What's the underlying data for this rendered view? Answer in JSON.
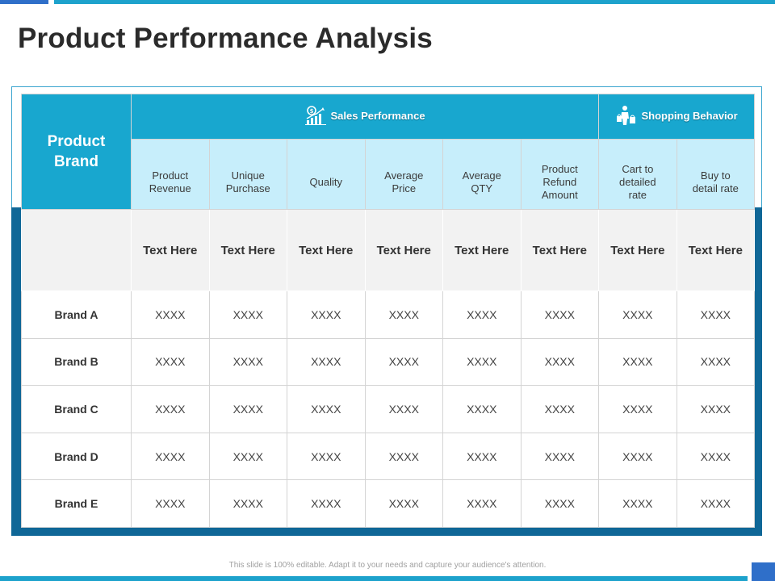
{
  "slide": {
    "title": "Product Performance Analysis",
    "footnote": "This slide is 100% editable. Adapt it to your needs and capture your audience's attention."
  },
  "table": {
    "brand_header_line1": "Product",
    "brand_header_line2": "Brand",
    "groups": [
      {
        "label": "Sales Performance",
        "icon": "money-growth-chart-icon"
      },
      {
        "label": "Shopping Behavior",
        "icon": "shopper-bags-icon"
      }
    ],
    "columns": [
      {
        "line1": "Product",
        "line2": "Revenue",
        "line3": ""
      },
      {
        "line1": "Unique",
        "line2": "Purchase",
        "line3": ""
      },
      {
        "line1": "Quality",
        "line2": "",
        "line3": ""
      },
      {
        "line1": "Average",
        "line2": "Price",
        "line3": ""
      },
      {
        "line1": "Average",
        "line2": "QTY",
        "line3": ""
      },
      {
        "line1": "Product",
        "line2": "Refund",
        "line3": "Amount"
      },
      {
        "line1": "Cart to",
        "line2": "detailed",
        "line3": "rate"
      },
      {
        "line1": "Buy to",
        "line2": "detail rate",
        "line3": ""
      }
    ],
    "text_row": [
      "Text Here",
      "Text Here",
      "Text Here",
      "Text Here",
      "Text Here",
      "Text Here",
      "Text Here",
      "Text Here"
    ],
    "rows": [
      {
        "brand": "Brand A",
        "values": [
          "XXXX",
          "XXXX",
          "XXXX",
          "XXXX",
          "XXXX",
          "XXXX",
          "XXXX",
          "XXXX"
        ]
      },
      {
        "brand": "Brand B",
        "values": [
          "XXXX",
          "XXXX",
          "XXXX",
          "XXXX",
          "XXXX",
          "XXXX",
          "XXXX",
          "XXXX"
        ]
      },
      {
        "brand": "Brand C",
        "values": [
          "XXXX",
          "XXXX",
          "XXXX",
          "XXXX",
          "XXXX",
          "XXXX",
          "XXXX",
          "XXXX"
        ]
      },
      {
        "brand": "Brand D",
        "values": [
          "XXXX",
          "XXXX",
          "XXXX",
          "XXXX",
          "XXXX",
          "XXXX",
          "XXXX",
          "XXXX"
        ]
      },
      {
        "brand": "Brand E",
        "values": [
          "XXXX",
          "XXXX",
          "XXXX",
          "XXXX",
          "XXXX",
          "XXXX",
          "XXXX",
          "XXXX"
        ]
      }
    ]
  },
  "colors": {
    "accent": "#18a7cf",
    "band": "#0f6797",
    "subheader": "#c7eefb",
    "brand_blue": "#2f6fc9"
  }
}
